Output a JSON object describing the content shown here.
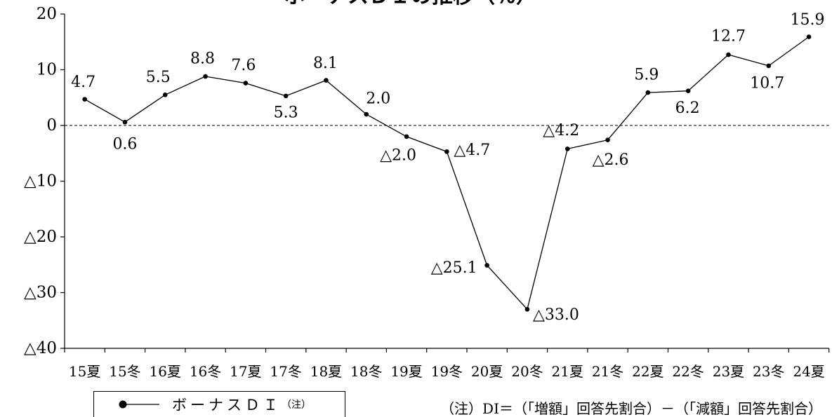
{
  "chart_data": {
    "type": "line",
    "title": "ボーナスＤＩの推移（％）",
    "categories": [
      "15夏",
      "15冬",
      "16夏",
      "16冬",
      "17夏",
      "17冬",
      "18夏",
      "18冬",
      "19夏",
      "19冬",
      "20夏",
      "20冬",
      "21夏",
      "21冬",
      "22夏",
      "22冬",
      "23夏",
      "23冬",
      "24夏"
    ],
    "series": [
      {
        "name": "ボーナスＤＩ",
        "values": [
          4.7,
          0.6,
          5.5,
          8.8,
          7.6,
          5.3,
          8.1,
          2.0,
          -2.0,
          -4.7,
          -25.1,
          -33.0,
          -4.2,
          -2.6,
          5.9,
          6.2,
          12.7,
          10.7,
          15.9
        ],
        "data_labels": [
          "4.7",
          "0.6",
          "5.5",
          "8.8",
          "7.6",
          "5.3",
          "8.1",
          "2.0",
          "△2.0",
          "△4.7",
          "△25.1",
          "△33.0",
          "△4.2",
          "△2.6",
          "5.9",
          "6.2",
          "12.7",
          "10.7",
          "15.9"
        ],
        "color": "#000000",
        "marker": "filled-circle"
      }
    ],
    "ylim": [
      -40,
      20
    ],
    "yticks": [
      20,
      10,
      0,
      -10,
      -20,
      -30,
      -40
    ],
    "ytick_labels": [
      "20",
      "10",
      "0",
      "△10",
      "△20",
      "△30",
      "△40"
    ],
    "grid": false,
    "reference_line": {
      "value": 0,
      "style": "dashed"
    },
    "legend": {
      "position": "bottom-left",
      "note_mark": "（注）"
    },
    "note": "（注）DI＝（「増額」回答先割合）－（「減額」回答先割合）"
  }
}
